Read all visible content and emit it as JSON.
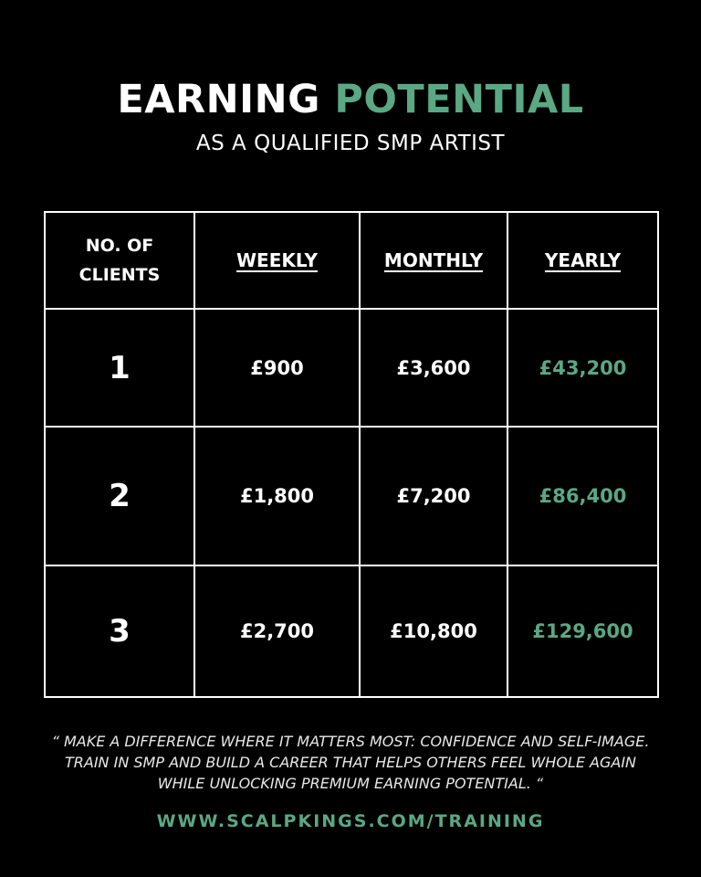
{
  "header": {
    "title_part1": "EARNING",
    "title_part2": "POTENTIAL",
    "subtitle": "AS A QUALIFIED SMP ARTIST"
  },
  "table": {
    "columns": [
      "NO. OF CLIENTS",
      "WEEKLY",
      "MONTHLY",
      "YEARLY"
    ],
    "rows": [
      {
        "clients": "1",
        "weekly": "£900",
        "monthly": "£3,600",
        "yearly": "£43,200"
      },
      {
        "clients": "2",
        "weekly": "£1,800",
        "monthly": "£7,200",
        "yearly": "£86,400"
      },
      {
        "clients": "3",
        "weekly": "£2,700",
        "monthly": "£10,800",
        "yearly": "£129,600"
      }
    ]
  },
  "quote": "“ MAKE A DIFFERENCE WHERE IT MATTERS MOST: CONFIDENCE AND SELF-IMAGE. TRAIN IN SMP AND BUILD A CAREER THAT HELPS OTHERS FEEL WHOLE AGAIN WHILE UNLOCKING PREMIUM EARNING POTENTIAL. “",
  "url": "WWW.SCALPKINGS.COM/TRAINING",
  "colors": {
    "accent": "#5aa884",
    "background": "#000000",
    "text": "#ffffff"
  }
}
